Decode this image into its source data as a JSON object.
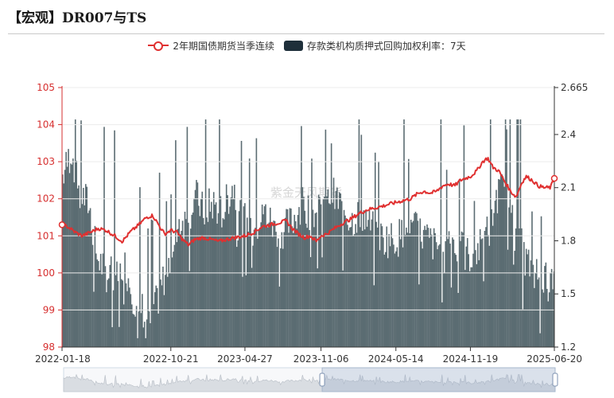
{
  "header": {
    "title": "【宏观】DR007与TS"
  },
  "chart_data": {
    "type": "line+bar",
    "title": "【宏观】DR007与TS",
    "watermark": "紫金天风期货",
    "legend_position": "top",
    "grid": true,
    "x_axis": {
      "type": "date",
      "range": [
        "2022-01-18",
        "2025-06-20"
      ],
      "tick_labels": [
        "2022-01-18",
        "2022-10-21",
        "2023-04-27",
        "2023-11-06",
        "2024-05-14",
        "2024-11-19",
        "2025-06-20"
      ]
    },
    "y_left": {
      "min": 98,
      "max": 105,
      "ticks": [
        98,
        99,
        100,
        101,
        102,
        103,
        104,
        105
      ],
      "color": "#d62f2f"
    },
    "y_right": {
      "min": 1.2,
      "max": 2.665,
      "ticks": [
        "1.2",
        "1.5",
        "1.8",
        "2.1",
        "2.4",
        "2.665"
      ],
      "color": "#1e2f3a"
    },
    "series": [
      {
        "name": "2年期国债期货当季连续",
        "type": "line",
        "axis": "left",
        "color": "#e03030",
        "points": [
          [
            "2022-01-18",
            101.3
          ],
          [
            "2022-02-01",
            101.25
          ],
          [
            "2022-02-20",
            101.1
          ],
          [
            "2022-03-10",
            101.0
          ],
          [
            "2022-04-01",
            101.1
          ],
          [
            "2022-04-20",
            101.2
          ],
          [
            "2022-05-10",
            101.15
          ],
          [
            "2022-06-01",
            101.0
          ],
          [
            "2022-06-20",
            100.85
          ],
          [
            "2022-07-10",
            101.1
          ],
          [
            "2022-08-01",
            101.3
          ],
          [
            "2022-08-20",
            101.5
          ],
          [
            "2022-09-05",
            101.55
          ],
          [
            "2022-09-20",
            101.3
          ],
          [
            "2022-10-05",
            101.05
          ],
          [
            "2022-10-21",
            101.15
          ],
          [
            "2022-11-05",
            101.1
          ],
          [
            "2022-11-20",
            100.9
          ],
          [
            "2022-12-05",
            100.75
          ],
          [
            "2022-12-20",
            100.9
          ],
          [
            "2023-01-10",
            100.95
          ],
          [
            "2023-02-01",
            100.9
          ],
          [
            "2023-02-20",
            100.85
          ],
          [
            "2023-03-10",
            100.9
          ],
          [
            "2023-04-01",
            100.95
          ],
          [
            "2023-04-27",
            101.0
          ],
          [
            "2023-05-20",
            101.1
          ],
          [
            "2023-06-10",
            101.25
          ],
          [
            "2023-07-01",
            101.3
          ],
          [
            "2023-07-20",
            101.35
          ],
          [
            "2023-08-10",
            101.4
          ],
          [
            "2023-08-25",
            101.2
          ],
          [
            "2023-09-10",
            101.05
          ],
          [
            "2023-09-25",
            100.95
          ],
          [
            "2023-10-10",
            101.0
          ],
          [
            "2023-10-25",
            100.85
          ],
          [
            "2023-11-06",
            101.0
          ],
          [
            "2023-11-20",
            101.05
          ],
          [
            "2023-12-10",
            101.2
          ],
          [
            "2024-01-01",
            101.35
          ],
          [
            "2024-01-20",
            101.45
          ],
          [
            "2024-02-10",
            101.6
          ],
          [
            "2024-03-01",
            101.7
          ],
          [
            "2024-03-20",
            101.75
          ],
          [
            "2024-04-10",
            101.8
          ],
          [
            "2024-04-25",
            101.85
          ],
          [
            "2024-05-14",
            101.9
          ],
          [
            "2024-06-01",
            101.95
          ],
          [
            "2024-06-20",
            102.0
          ],
          [
            "2024-07-10",
            102.15
          ],
          [
            "2024-07-25",
            102.2
          ],
          [
            "2024-08-10",
            102.15
          ],
          [
            "2024-08-25",
            102.2
          ],
          [
            "2024-09-10",
            102.35
          ],
          [
            "2024-09-25",
            102.4
          ],
          [
            "2024-10-10",
            102.35
          ],
          [
            "2024-10-25",
            102.5
          ],
          [
            "2024-11-05",
            102.55
          ],
          [
            "2024-11-19",
            102.6
          ],
          [
            "2024-12-05",
            102.75
          ],
          [
            "2024-12-20",
            103.0
          ],
          [
            "2025-01-02",
            103.1
          ],
          [
            "2025-01-15",
            102.85
          ],
          [
            "2025-01-30",
            102.75
          ],
          [
            "2025-02-15",
            102.45
          ],
          [
            "2025-03-01",
            102.2
          ],
          [
            "2025-03-15",
            102.05
          ],
          [
            "2025-03-30",
            102.45
          ],
          [
            "2025-04-10",
            102.6
          ],
          [
            "2025-04-25",
            102.5
          ],
          [
            "2025-05-10",
            102.35
          ],
          [
            "2025-05-25",
            102.3
          ],
          [
            "2025-06-10",
            102.3
          ],
          [
            "2025-06-20",
            102.55
          ]
        ]
      },
      {
        "name": "存款类机构质押式回购加权利率：7天",
        "type": "bar",
        "axis": "right",
        "color": "#5b6c72",
        "points": [
          [
            "2022-01-18",
            2.15
          ],
          [
            "2022-02-10",
            2.3
          ],
          [
            "2022-03-01",
            2.05
          ],
          [
            "2022-03-25",
            2.0
          ],
          [
            "2022-04-15",
            1.7
          ],
          [
            "2022-05-10",
            1.6
          ],
          [
            "2022-06-01",
            1.6
          ],
          [
            "2022-06-25",
            1.65
          ],
          [
            "2022-07-20",
            1.45
          ],
          [
            "2022-08-10",
            1.4
          ],
          [
            "2022-08-25",
            1.3
          ],
          [
            "2022-09-15",
            1.45
          ],
          [
            "2022-10-05",
            1.6
          ],
          [
            "2022-10-21",
            1.75
          ],
          [
            "2022-11-10",
            1.9
          ],
          [
            "2022-12-01",
            1.9
          ],
          [
            "2022-12-20",
            2.05
          ],
          [
            "2023-01-10",
            1.95
          ],
          [
            "2023-02-01",
            2.0
          ],
          [
            "2023-03-01",
            1.95
          ],
          [
            "2023-03-25",
            2.1
          ],
          [
            "2023-04-27",
            1.9
          ],
          [
            "2023-05-20",
            1.85
          ],
          [
            "2023-06-15",
            1.95
          ],
          [
            "2023-07-10",
            1.85
          ],
          [
            "2023-08-01",
            1.85
          ],
          [
            "2023-08-25",
            1.9
          ],
          [
            "2023-09-15",
            2.0
          ],
          [
            "2023-10-10",
            1.95
          ],
          [
            "2023-11-06",
            1.95
          ],
          [
            "2023-12-01",
            2.05
          ],
          [
            "2023-12-25",
            2.0
          ],
          [
            "2024-01-20",
            1.9
          ],
          [
            "2024-02-15",
            1.95
          ],
          [
            "2024-03-15",
            1.85
          ],
          [
            "2024-04-10",
            1.8
          ],
          [
            "2024-05-14",
            1.8
          ],
          [
            "2024-06-10",
            1.85
          ],
          [
            "2024-07-05",
            1.85
          ],
          [
            "2024-08-01",
            1.8
          ],
          [
            "2024-08-25",
            1.75
          ],
          [
            "2024-09-20",
            1.85
          ],
          [
            "2024-10-15",
            1.75
          ],
          [
            "2024-11-19",
            1.7
          ],
          [
            "2024-12-10",
            1.75
          ],
          [
            "2025-01-05",
            1.85
          ],
          [
            "2025-01-25",
            2.05
          ],
          [
            "2025-02-15",
            2.1
          ],
          [
            "2025-03-10",
            1.95
          ],
          [
            "2025-04-05",
            1.7
          ],
          [
            "2025-04-25",
            1.6
          ],
          [
            "2025-05-15",
            1.6
          ],
          [
            "2025-06-05",
            1.55
          ],
          [
            "2025-06-20",
            1.5
          ]
        ]
      }
    ]
  },
  "datazoom": {
    "start_percent": 0,
    "end_percent": 100,
    "selected_from": "2023-11-06",
    "selected_to": "2025-06-20"
  }
}
